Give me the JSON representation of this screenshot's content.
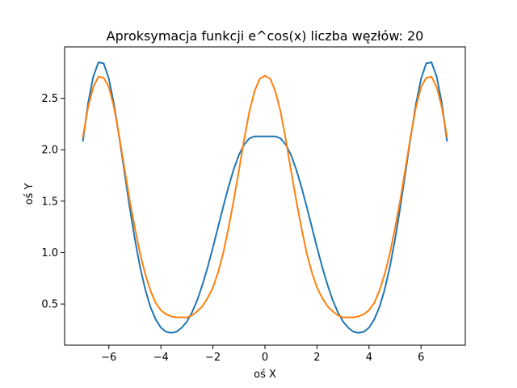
{
  "chart_data": {
    "type": "line",
    "title": "Aproksymacja funkcji e^cos(x) liczba węzłów: 20",
    "xlabel": "oś X",
    "ylabel": "oś Y",
    "xlim": [
      -7.7,
      7.7
    ],
    "ylim": [
      0.1,
      3.0
    ],
    "xticks": [
      -6,
      -4,
      -2,
      0,
      2,
      4,
      6
    ],
    "xtick_labels": [
      "−6",
      "−4",
      "−2",
      "0",
      "2",
      "4",
      "6"
    ],
    "yticks": [
      0.5,
      1.0,
      1.5,
      2.0,
      2.5
    ],
    "ytick_labels": [
      "0.5",
      "1.0",
      "1.5",
      "2.0",
      "2.5"
    ],
    "grid": false,
    "series": [
      {
        "color": "#1f77b4",
        "x": [
          -7.0,
          -6.8,
          -6.6,
          -6.4,
          -6.2,
          -6.0,
          -5.8,
          -5.6,
          -5.4,
          -5.2,
          -5.0,
          -4.8,
          -4.6,
          -4.4,
          -4.2,
          -4.0,
          -3.8,
          -3.6,
          -3.4,
          -3.2,
          -3.0,
          -2.8,
          -2.6,
          -2.4,
          -2.2,
          -2.0,
          -1.8,
          -1.6,
          -1.4,
          -1.2,
          -1.0,
          -0.8,
          -0.6,
          -0.4,
          -0.2,
          0.0,
          0.2,
          0.4,
          0.6,
          0.8,
          1.0,
          1.2,
          1.4,
          1.6,
          1.8,
          2.0,
          2.2,
          2.4,
          2.6,
          2.8,
          3.0,
          3.2,
          3.4,
          3.6,
          3.8,
          4.0,
          4.2,
          4.4,
          4.6,
          4.8,
          5.0,
          5.2,
          5.4,
          5.6,
          5.8,
          6.0,
          6.2,
          6.4,
          6.6,
          6.8,
          7.0
        ],
        "y": [
          2.08,
          2.45,
          2.71,
          2.85,
          2.84,
          2.69,
          2.44,
          2.12,
          1.78,
          1.44,
          1.13,
          0.86,
          0.64,
          0.47,
          0.35,
          0.27,
          0.23,
          0.22,
          0.23,
          0.27,
          0.33,
          0.42,
          0.54,
          0.69,
          0.86,
          1.05,
          1.25,
          1.45,
          1.64,
          1.81,
          1.95,
          2.05,
          2.11,
          2.13,
          2.13,
          2.13,
          2.13,
          2.13,
          2.11,
          2.05,
          1.95,
          1.81,
          1.64,
          1.45,
          1.25,
          1.05,
          0.86,
          0.69,
          0.54,
          0.42,
          0.33,
          0.27,
          0.23,
          0.22,
          0.23,
          0.27,
          0.35,
          0.47,
          0.64,
          0.86,
          1.13,
          1.44,
          1.78,
          2.12,
          2.44,
          2.69,
          2.84,
          2.85,
          2.71,
          2.45,
          2.08
        ]
      },
      {
        "color": "#ff7f0e",
        "x": [
          -7.0,
          -6.8,
          -6.6,
          -6.4,
          -6.2,
          -6.0,
          -5.8,
          -5.6,
          -5.4,
          -5.2,
          -5.0,
          -4.8,
          -4.6,
          -4.4,
          -4.2,
          -4.0,
          -3.8,
          -3.6,
          -3.4,
          -3.2,
          -3.0,
          -2.8,
          -2.6,
          -2.4,
          -2.2,
          -2.0,
          -1.8,
          -1.6,
          -1.4,
          -1.2,
          -1.0,
          -0.8,
          -0.6,
          -0.4,
          -0.2,
          0.0,
          0.2,
          0.4,
          0.6,
          0.8,
          1.0,
          1.2,
          1.4,
          1.6,
          1.8,
          2.0,
          2.2,
          2.4,
          2.6,
          2.8,
          3.0,
          3.2,
          3.4,
          3.6,
          3.8,
          4.0,
          4.2,
          4.4,
          4.6,
          4.8,
          5.0,
          5.2,
          5.4,
          5.6,
          5.8,
          6.0,
          6.2,
          6.4,
          6.6,
          6.8,
          7.0
        ],
        "y": [
          2.12,
          2.41,
          2.61,
          2.71,
          2.7,
          2.61,
          2.41,
          2.13,
          1.82,
          1.51,
          1.24,
          0.99,
          0.79,
          0.63,
          0.51,
          0.44,
          0.4,
          0.38,
          0.37,
          0.37,
          0.37,
          0.39,
          0.43,
          0.48,
          0.56,
          0.66,
          0.81,
          1.0,
          1.24,
          1.51,
          1.8,
          2.1,
          2.37,
          2.57,
          2.69,
          2.72,
          2.69,
          2.57,
          2.37,
          2.1,
          1.8,
          1.51,
          1.24,
          1.0,
          0.81,
          0.66,
          0.56,
          0.48,
          0.43,
          0.39,
          0.37,
          0.37,
          0.37,
          0.38,
          0.4,
          0.44,
          0.51,
          0.63,
          0.79,
          0.99,
          1.24,
          1.51,
          1.82,
          2.13,
          2.41,
          2.61,
          2.7,
          2.71,
          2.61,
          2.41,
          2.12
        ]
      }
    ]
  }
}
